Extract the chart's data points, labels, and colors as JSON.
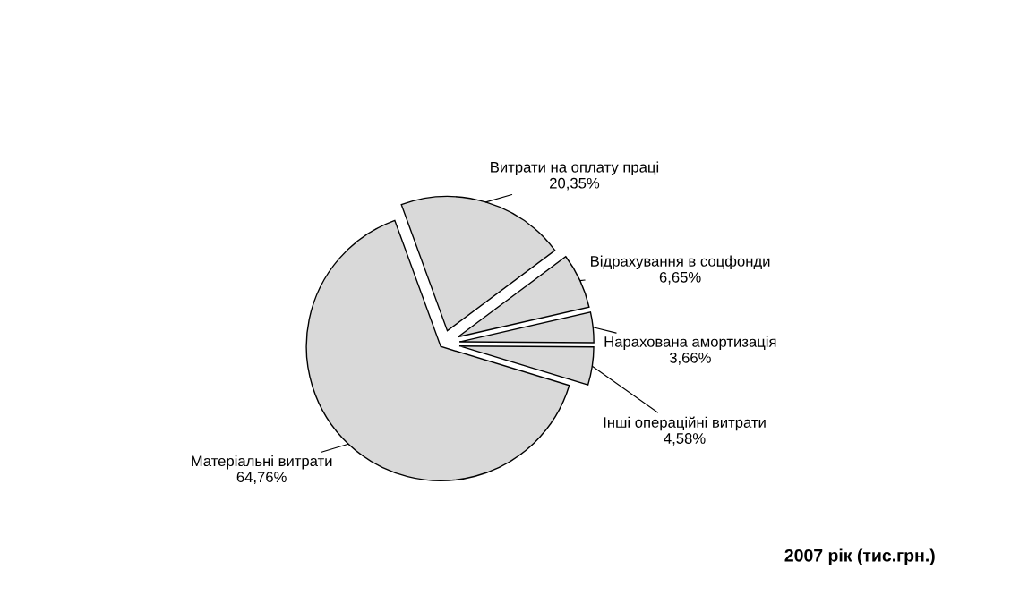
{
  "chart_data": {
    "type": "pie",
    "title": "2007 рік (тис.грн.)",
    "categories": [
      "Витрати на оплату праці",
      "Відрахування в соцфонди",
      "Нарахована амортизація",
      "Інші операційні витрати",
      "Матеріальні витрати"
    ],
    "values": [
      20.35,
      6.65,
      3.66,
      4.58,
      64.76
    ],
    "value_labels": [
      "20,35%",
      "6,65%",
      "3,66%",
      "4,58%",
      "64,76%"
    ],
    "colors": [
      "#d9d9d9",
      "#d9d9d9",
      "#d9d9d9",
      "#d9d9d9",
      "#d9d9d9"
    ],
    "legend": false
  }
}
